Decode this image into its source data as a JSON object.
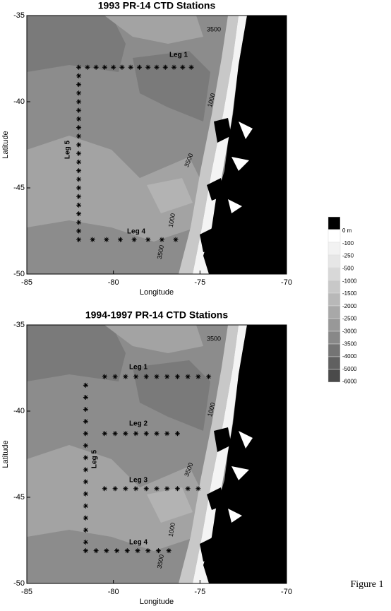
{
  "chart_data": [
    {
      "type": "scatter",
      "title": "1993 PR-14 CTD Stations",
      "x_label": "Longitude",
      "y_label": "Latitude",
      "xlim": [
        -85,
        -70
      ],
      "ylim": [
        -50,
        -35
      ],
      "xticks": [
        -85,
        -80,
        -75,
        -70
      ],
      "yticks": [
        -35,
        -40,
        -45,
        -50
      ],
      "color": "#000000",
      "annotations": [
        "3500",
        "1000",
        "3500",
        "1000",
        "3500"
      ],
      "series": [
        {
          "name": "Leg 1",
          "x": [
            -82,
            -81.5,
            -81,
            -80.5,
            -80,
            -79.5,
            -79,
            -78.5,
            -78,
            -77.5,
            -77,
            -76.5,
            -76,
            -75.5
          ],
          "y": [
            -38,
            -38,
            -38,
            -38,
            -38,
            -38,
            -38,
            -38,
            -38,
            -38,
            -38,
            -38,
            -38,
            -38
          ]
        },
        {
          "name": "Leg 5",
          "x": [
            -82,
            -82,
            -82,
            -82,
            -82,
            -82,
            -82,
            -82,
            -82,
            -82,
            -82,
            -82,
            -82,
            -82,
            -82,
            -82,
            -82,
            -82,
            -82
          ],
          "y": [
            -38.5,
            -39,
            -39.5,
            -40,
            -40.5,
            -41,
            -41.5,
            -42,
            -42.5,
            -43,
            -43.5,
            -44,
            -44.5,
            -45,
            -45.5,
            -46,
            -46.5,
            -47,
            -47.5
          ]
        },
        {
          "name": "Leg 4",
          "x": [
            -82,
            -81.2,
            -80.4,
            -79.6,
            -78.8,
            -78,
            -77.2,
            -76.4
          ],
          "y": [
            -48,
            -48,
            -48,
            -48,
            -48,
            -48,
            -48,
            -48
          ]
        }
      ]
    },
    {
      "type": "scatter",
      "title": "1994-1997 PR-14 CTD Stations",
      "x_label": "Longitude",
      "y_label": "Latitude",
      "xlim": [
        -85,
        -70
      ],
      "ylim": [
        -50,
        -35
      ],
      "xticks": [
        -85,
        -80,
        -75,
        -70
      ],
      "yticks": [
        -35,
        -40,
        -45,
        -50
      ],
      "color": "#000000",
      "annotations": [
        "3500",
        "1000",
        "3500",
        "1000",
        "3500"
      ],
      "series": [
        {
          "name": "Leg 1",
          "x": [
            -80.5,
            -79.9,
            -79.3,
            -78.7,
            -78.1,
            -77.5,
            -76.9,
            -76.3,
            -75.7,
            -75.1,
            -74.5
          ],
          "y": [
            -38,
            -38,
            -38,
            -38,
            -38,
            -38,
            -38,
            -38,
            -38,
            -38,
            -38
          ]
        },
        {
          "name": "Leg 2",
          "x": [
            -80.5,
            -79.9,
            -79.3,
            -78.7,
            -78.1,
            -77.5,
            -76.9,
            -76.3
          ],
          "y": [
            -41.3,
            -41.3,
            -41.3,
            -41.3,
            -41.3,
            -41.3,
            -41.3,
            -41.3
          ]
        },
        {
          "name": "Leg 5",
          "x": [
            -81.6,
            -81.6,
            -81.6,
            -81.6,
            -81.6,
            -81.6,
            -81.6,
            -81.6,
            -81.6,
            -81.6,
            -81.6,
            -81.6,
            -81.6,
            -81.6
          ],
          "y": [
            -38.5,
            -39.2,
            -39.9,
            -40.6,
            -41.3,
            -42,
            -42.7,
            -43.4,
            -44.1,
            -44.8,
            -45.5,
            -46.2,
            -46.9,
            -47.6
          ]
        },
        {
          "name": "Leg 3",
          "x": [
            -80.5,
            -79.9,
            -79.3,
            -78.7,
            -78.1,
            -77.5,
            -76.9,
            -76.3,
            -75.7,
            -75.1
          ],
          "y": [
            -44.5,
            -44.5,
            -44.5,
            -44.5,
            -44.5,
            -44.5,
            -44.5,
            -44.5,
            -44.5,
            -44.5
          ]
        },
        {
          "name": "Leg 4",
          "x": [
            -81.6,
            -81,
            -80.4,
            -79.8,
            -79.2,
            -78.6,
            -78,
            -77.4,
            -76.8
          ],
          "y": [
            -48.1,
            -48.1,
            -48.1,
            -48.1,
            -48.1,
            -48.1,
            -48.1,
            -48.1,
            -48.1
          ]
        }
      ]
    }
  ],
  "colorbar": {
    "labels": [
      "0 m",
      "-100",
      "-250",
      "-500",
      "-1000",
      "-1500",
      "-2000",
      "-2500",
      "-3000",
      "-3500",
      "-4000",
      "-5000",
      "-6000"
    ],
    "colors": [
      "#000000",
      "#ffffff",
      "#f2f2f2",
      "#e6e6e6",
      "#d8d8d8",
      "#c8c8c8",
      "#b8b8b8",
      "#a8a8a8",
      "#989898",
      "#888888",
      "#747474",
      "#606060",
      "#4a4a4a"
    ]
  },
  "caption": "Figure 1"
}
